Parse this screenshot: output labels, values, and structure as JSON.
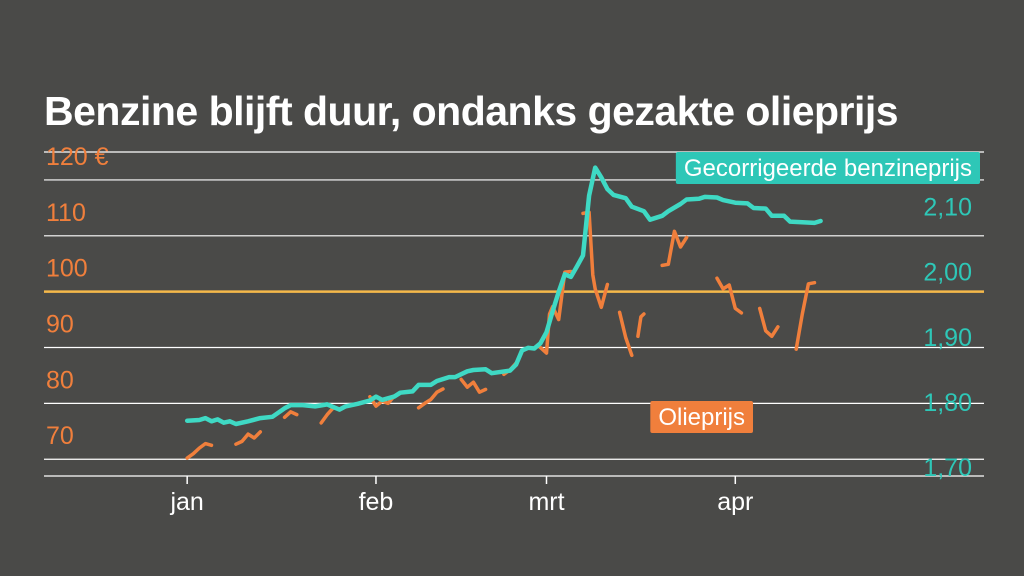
{
  "title": "Benzine blijft duur, ondanks gezakte olieprijs",
  "colors": {
    "background": "#4a4a48",
    "benzine": "#3fd9c4",
    "olie": "#f07f3c",
    "reference_line": "#f5b94a",
    "gridline": "#ffffff"
  },
  "chart_data": {
    "type": "line",
    "title": "Benzine blijft duur, ondanks gezakte olieprijs",
    "x_ticks": [
      "jan",
      "feb",
      "mrt",
      "apr"
    ],
    "x_tick_days": [
      0,
      31,
      59,
      90
    ],
    "x_domain": [
      -24,
      131
    ],
    "left_axis": {
      "ticks": [
        "70",
        "80",
        "90",
        "100",
        "110",
        "120 €"
      ],
      "values": [
        70,
        80,
        90,
        100,
        110,
        120
      ],
      "range": [
        67,
        125
      ]
    },
    "right_axis": {
      "ticks": [
        "1,70",
        "1,80",
        "1,90",
        "2,00",
        "2,10"
      ],
      "values": [
        1.7,
        1.8,
        1.9,
        2.0,
        2.1
      ],
      "range": [
        1.686,
        2.184
      ]
    },
    "reference_line": {
      "axis": "left",
      "value": 100
    },
    "grid": true,
    "series": [
      {
        "name": "Gecorrigeerde benzineprijs",
        "axis": "right",
        "color": "#3fd9c4",
        "points": [
          [
            0,
            1.771
          ],
          [
            2,
            1.772
          ],
          [
            3,
            1.775
          ],
          [
            4,
            1.77
          ],
          [
            5,
            1.773
          ],
          [
            6,
            1.768
          ],
          [
            7,
            1.77
          ],
          [
            8,
            1.766
          ],
          [
            10,
            1.77
          ],
          [
            12,
            1.775
          ],
          [
            14,
            1.777
          ],
          [
            16,
            1.79
          ],
          [
            17,
            1.795
          ],
          [
            19,
            1.795
          ],
          [
            21,
            1.793
          ],
          [
            23,
            1.796
          ],
          [
            25,
            1.788
          ],
          [
            26,
            1.793
          ],
          [
            28,
            1.797
          ],
          [
            30,
            1.802
          ],
          [
            31,
            1.808
          ],
          [
            32,
            1.803
          ],
          [
            34,
            1.808
          ],
          [
            35,
            1.814
          ],
          [
            37,
            1.816
          ],
          [
            38,
            1.826
          ],
          [
            40,
            1.826
          ],
          [
            41,
            1.832
          ],
          [
            43,
            1.838
          ],
          [
            44,
            1.838
          ],
          [
            46,
            1.847
          ],
          [
            47,
            1.849
          ],
          [
            49,
            1.85
          ],
          [
            50,
            1.844
          ],
          [
            53,
            1.848
          ],
          [
            54,
            1.857
          ],
          [
            55,
            1.879
          ],
          [
            56,
            1.883
          ],
          [
            57,
            1.882
          ],
          [
            58,
            1.89
          ],
          [
            59,
            1.907
          ],
          [
            60,
            1.939
          ],
          [
            61,
            1.969
          ],
          [
            62,
            1.996
          ],
          [
            63,
            1.992
          ],
          [
            64,
            2.008
          ],
          [
            65,
            2.025
          ],
          [
            66,
            2.117
          ],
          [
            67,
            2.16
          ],
          [
            68,
            2.145
          ],
          [
            69,
            2.127
          ],
          [
            70,
            2.118
          ],
          [
            72,
            2.113
          ],
          [
            73,
            2.1
          ],
          [
            75,
            2.093
          ],
          [
            76,
            2.08
          ],
          [
            78,
            2.086
          ],
          [
            79,
            2.093
          ],
          [
            81,
            2.104
          ],
          [
            82,
            2.111
          ],
          [
            84,
            2.112
          ],
          [
            85,
            2.115
          ],
          [
            87,
            2.114
          ],
          [
            88,
            2.11
          ],
          [
            90,
            2.106
          ],
          [
            92,
            2.105
          ],
          [
            93,
            2.098
          ],
          [
            95,
            2.097
          ],
          [
            96,
            2.086
          ],
          [
            98,
            2.086
          ],
          [
            99,
            2.077
          ],
          [
            101,
            2.076
          ],
          [
            103,
            2.075
          ],
          [
            104,
            2.078
          ]
        ]
      },
      {
        "name": "Olieprijs",
        "axis": "left",
        "color": "#f07f3c",
        "segments": [
          [
            [
              0,
              70.2
            ],
            [
              1,
              71.0
            ],
            [
              2,
              72.0
            ],
            [
              3,
              72.8
            ],
            [
              4,
              72.5
            ]
          ],
          [
            [
              8,
              72.7
            ],
            [
              9,
              73.2
            ],
            [
              10,
              74.5
            ],
            [
              11,
              73.8
            ],
            [
              12,
              74.9
            ]
          ],
          [
            [
              16,
              77.5
            ],
            [
              17,
              78.5
            ],
            [
              18,
              78.0
            ]
          ],
          [
            [
              22,
              76.5
            ],
            [
              23,
              78.0
            ],
            [
              24,
              79.2
            ],
            [
              25,
              79.0
            ]
          ],
          [
            [
              30,
              81.2
            ],
            [
              31,
              79.5
            ],
            [
              32,
              80.4
            ],
            [
              33,
              80.0
            ],
            [
              34,
              81.3
            ]
          ],
          [
            [
              38,
              79.2
            ],
            [
              39,
              80.0
            ],
            [
              40,
              80.7
            ],
            [
              41,
              82.0
            ],
            [
              42,
              82.6
            ]
          ],
          [
            [
              45,
              84.3
            ],
            [
              46,
              82.9
            ],
            [
              47,
              83.8
            ],
            [
              48,
              82.0
            ],
            [
              49,
              82.5
            ]
          ],
          [
            [
              52,
              85.2
            ],
            [
              53,
              86.0
            ],
            [
              54,
              87.2
            ]
          ],
          [
            [
              58,
              90.0
            ],
            [
              59,
              89.0
            ],
            [
              59.5,
              96.0
            ],
            [
              60,
              97.3
            ],
            [
              61,
              95.0
            ],
            [
              62,
              103.5
            ],
            [
              63,
              103.6
            ]
          ],
          [
            [
              65,
              114.0
            ],
            [
              66,
              114.2
            ],
            [
              66.6,
              103.0
            ],
            [
              67,
              100.5
            ],
            [
              68,
              97.2
            ],
            [
              69,
              101.3
            ]
          ],
          [
            [
              71,
              96.3
            ],
            [
              72,
              91.8
            ],
            [
              73,
              88.6
            ]
          ],
          [
            [
              74,
              92.0
            ],
            [
              74.5,
              95.5
            ],
            [
              75,
              96.0
            ]
          ],
          [
            [
              78,
              104.7
            ],
            [
              79,
              104.9
            ],
            [
              80,
              110.8
            ],
            [
              81,
              108.0
            ],
            [
              82,
              109.7
            ]
          ],
          [
            [
              87,
              102.4
            ],
            [
              88,
              100.5
            ],
            [
              89,
              101.2
            ],
            [
              90,
              97.0
            ],
            [
              91,
              96.2
            ]
          ],
          [
            [
              94,
              97.0
            ],
            [
              95,
              93.0
            ],
            [
              96,
              92.0
            ],
            [
              97,
              93.7
            ]
          ],
          [
            [
              100,
              89.7
            ],
            [
              101,
              96.0
            ],
            [
              102,
              101.4
            ],
            [
              103,
              101.6
            ]
          ]
        ]
      }
    ]
  }
}
